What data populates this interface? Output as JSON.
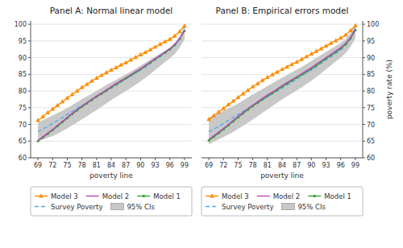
{
  "chart_data": [
    {
      "type": "line",
      "title": "Panel A: Normal linear model",
      "xlabel": "poverty line",
      "x": [
        69,
        70,
        71,
        72,
        73,
        74,
        75,
        76,
        77,
        78,
        79,
        80,
        81,
        82,
        83,
        84,
        85,
        86,
        87,
        88,
        89,
        90,
        91,
        92,
        93,
        94,
        95,
        96,
        97,
        98,
        99
      ],
      "xlim": [
        67.5,
        100.5
      ],
      "xticks": [
        69,
        72,
        75,
        78,
        81,
        84,
        87,
        90,
        93,
        96,
        99
      ],
      "ylim": [
        60,
        101
      ],
      "yticks": [
        60,
        65,
        70,
        75,
        80,
        85,
        90,
        95,
        100
      ],
      "grid": true,
      "legend": "bottom",
      "series": [
        {
          "name": "Model 3",
          "color": "#FF8C00",
          "marker": "triangle",
          "line_style": "solid",
          "values": [
            71.2,
            72.3,
            73.5,
            74.6,
            75.7,
            76.8,
            77.9,
            79.0,
            80.0,
            81.1,
            82.0,
            83.0,
            83.9,
            84.7,
            85.5,
            86.3,
            87.0,
            87.8,
            88.5,
            89.3,
            90.1,
            90.9,
            91.6,
            92.4,
            93.2,
            94.0,
            94.8,
            95.5,
            96.5,
            97.8,
            99.5
          ]
        },
        {
          "name": "Model 2",
          "color": "#BB44BB",
          "line_style": "solid",
          "values": [
            65.2,
            66.3,
            67.4,
            68.5,
            69.7,
            70.9,
            72.1,
            73.3,
            74.4,
            75.5,
            76.5,
            77.5,
            78.5,
            79.4,
            80.3,
            81.3,
            82.2,
            83.1,
            84.0,
            84.9,
            85.8,
            86.7,
            87.7,
            88.7,
            89.7,
            90.7,
            91.7,
            92.7,
            94.0,
            95.8,
            98.2
          ]
        },
        {
          "name": "Model 1",
          "color": "#33AA33",
          "marker": "circle",
          "line_style": "solid",
          "values": [
            65.0,
            66.1,
            67.2,
            68.3,
            69.5,
            70.7,
            71.9,
            73.1,
            74.2,
            75.3,
            76.3,
            77.3,
            78.3,
            79.2,
            80.1,
            81.1,
            82.0,
            82.9,
            83.8,
            84.7,
            85.6,
            86.5,
            87.5,
            88.5,
            89.5,
            90.5,
            91.5,
            92.5,
            93.8,
            95.6,
            98.0
          ]
        },
        {
          "name": "Survey Poverty",
          "color": "#55AAEE",
          "line_style": "dashed",
          "values": [
            67.8,
            68.6,
            69.4,
            70.3,
            71.2,
            72.1,
            73.0,
            73.9,
            74.8,
            75.7,
            76.5,
            77.4,
            78.3,
            79.1,
            80.0,
            80.9,
            81.8,
            82.7,
            83.6,
            84.5,
            85.4,
            86.3,
            87.3,
            88.3,
            89.3,
            90.3,
            91.3,
            92.3,
            93.6,
            95.5,
            99.0
          ]
        },
        {
          "name": "95% CIs",
          "type": "area",
          "color": "#C8C8C8",
          "low": [
            65.0,
            65.5,
            66.0,
            66.5,
            67.2,
            68.0,
            68.8,
            69.7,
            70.6,
            71.5,
            72.4,
            73.4,
            74.3,
            75.3,
            76.3,
            77.3,
            78.2,
            79.1,
            80.0,
            80.9,
            81.9,
            82.9,
            84.0,
            85.1,
            86.3,
            87.5,
            88.7,
            89.8,
            91.2,
            93.0,
            95.5
          ],
          "high": [
            70.5,
            71.3,
            72.0,
            72.7,
            73.4,
            74.1,
            74.9,
            75.8,
            76.7,
            77.6,
            78.4,
            79.2,
            80.1,
            80.9,
            81.8,
            82.6,
            83.4,
            84.2,
            85.0,
            85.8,
            86.7,
            87.6,
            88.5,
            89.4,
            90.3,
            91.2,
            92.1,
            93.0,
            94.2,
            96.0,
            99.0
          ]
        }
      ]
    },
    {
      "type": "line",
      "title": "Panel B: Empirical errors model",
      "xlabel": "poverty line",
      "ylabel": "poverty rate (%)",
      "x": [
        69,
        70,
        71,
        72,
        73,
        74,
        75,
        76,
        77,
        78,
        79,
        80,
        81,
        82,
        83,
        84,
        85,
        86,
        87,
        88,
        89,
        90,
        91,
        92,
        93,
        94,
        95,
        96,
        97,
        98,
        99
      ],
      "xlim": [
        67.5,
        100.5
      ],
      "xticks": [
        69,
        72,
        75,
        78,
        81,
        84,
        87,
        90,
        93,
        96,
        99
      ],
      "ylim": [
        60,
        101
      ],
      "yticks": [
        60,
        65,
        70,
        75,
        80,
        85,
        90,
        95,
        100
      ],
      "grid": true,
      "legend": "bottom",
      "series": [
        {
          "name": "Model 3",
          "color": "#FF8C00",
          "marker": "triangle",
          "line_style": "solid",
          "values": [
            71.5,
            72.6,
            73.7,
            74.8,
            75.9,
            77.0,
            78.1,
            79.2,
            80.2,
            81.3,
            82.2,
            83.2,
            84.1,
            84.9,
            85.7,
            86.5,
            87.2,
            88.0,
            88.7,
            89.5,
            90.3,
            91.1,
            91.9,
            92.7,
            93.5,
            94.3,
            95.1,
            95.9,
            96.8,
            98.1,
            99.6
          ]
        },
        {
          "name": "Model 2",
          "color": "#BB44BB",
          "line_style": "solid",
          "values": [
            65.5,
            66.6,
            67.7,
            68.8,
            70.0,
            71.2,
            72.4,
            73.6,
            74.7,
            75.8,
            76.8,
            77.8,
            78.8,
            79.7,
            80.6,
            81.6,
            82.5,
            83.4,
            84.3,
            85.2,
            86.1,
            87.0,
            88.0,
            89.0,
            90.0,
            91.0,
            92.0,
            93.0,
            94.3,
            96.1,
            98.5
          ]
        },
        {
          "name": "Model 1",
          "color": "#33AA33",
          "marker": "circle",
          "line_style": "solid",
          "values": [
            65.2,
            66.3,
            67.4,
            68.5,
            69.7,
            70.9,
            72.1,
            73.3,
            74.4,
            75.5,
            76.5,
            77.5,
            78.5,
            79.4,
            80.3,
            81.3,
            82.2,
            83.1,
            84.0,
            84.9,
            85.8,
            86.7,
            87.7,
            88.7,
            89.7,
            90.7,
            91.7,
            92.7,
            94.0,
            95.8,
            98.2
          ]
        },
        {
          "name": "Survey Poverty",
          "color": "#55AAEE",
          "line_style": "dashed",
          "values": [
            67.8,
            68.6,
            69.4,
            70.3,
            71.2,
            72.1,
            73.0,
            73.9,
            74.8,
            75.7,
            76.5,
            77.4,
            78.3,
            79.1,
            80.0,
            80.9,
            81.8,
            82.7,
            83.6,
            84.5,
            85.4,
            86.3,
            87.3,
            88.3,
            89.3,
            90.3,
            91.3,
            92.3,
            93.6,
            95.5,
            99.0
          ]
        },
        {
          "name": "95% CIs",
          "type": "area",
          "color": "#C8C8C8",
          "low": [
            64.0,
            64.8,
            65.5,
            66.2,
            67.0,
            67.8,
            68.7,
            69.6,
            70.5,
            71.5,
            72.5,
            73.5,
            74.5,
            75.5,
            76.5,
            77.5,
            78.4,
            79.3,
            80.2,
            81.1,
            82.1,
            83.1,
            84.2,
            85.3,
            86.5,
            87.7,
            88.9,
            90.0,
            91.4,
            93.2,
            95.7
          ],
          "high": [
            72.0,
            72.7,
            73.4,
            74.1,
            74.8,
            75.5,
            76.3,
            77.2,
            78.1,
            79.0,
            79.8,
            80.6,
            81.5,
            82.3,
            83.2,
            84.0,
            84.8,
            85.6,
            86.4,
            87.2,
            88.1,
            89.0,
            89.9,
            90.8,
            91.7,
            92.6,
            93.5,
            94.4,
            95.6,
            97.4,
            99.8
          ]
        }
      ]
    }
  ]
}
